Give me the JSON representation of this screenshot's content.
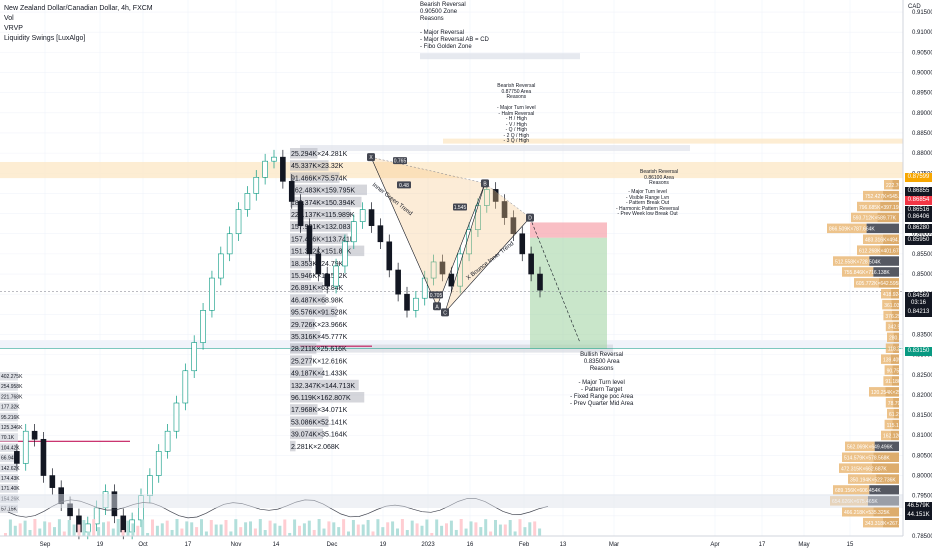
{
  "legend": {
    "title": "New Zealand Dollar/Canadian Dollar, 4h, FXCM",
    "indicators": [
      "Vol",
      "VRVP",
      "Liquidity Swings [LuxAlgo]"
    ]
  },
  "annotations": {
    "top_reversal": [
      "Bearish Reversal",
      "0.90500 Zone",
      "Reasons",
      "",
      "- Major Reversal",
      "- Major Reversal AB = CD",
      "- Fibo Golden Zone"
    ],
    "mid_reversal": [
      "Bearish Reversal",
      "0.87750 Area",
      "Reasons",
      "",
      "- Major Turn level",
      "- Halm Reversal",
      "- H / High",
      "- V / High",
      "- Q / High",
      "- 2 Q / High",
      "- 3 Q / High"
    ],
    "right_reversal": [
      "Bearish Reversal",
      "0.86100 Area",
      "Reasons"
    ],
    "right_reasons": [
      "- Major Turn level",
      "- Visible Range Lvn",
      "- Pattern Break Out",
      "- Harmonic Pattern Reversal",
      "- Prev Week low Break Out"
    ],
    "bullish_reversal": [
      "Bullish Reversal",
      "0.83500 Area",
      "Reasons",
      "",
      "- Major Turn level",
      "- Pattern Target",
      "- Fixed Range poc Area",
      "- Prev Quarter Mid Area"
    ],
    "inner_trend": "Inner Green Trend",
    "bounce_trend": "X Bounce Inner Trend"
  },
  "pattern_points": [
    "X",
    "A",
    "B",
    "C",
    "D",
    "0.765",
    "0.48",
    "1.545",
    "0.705"
  ],
  "vpvr_left_labels": [
    "25.294K×24.281K",
    "45.337K×23.32K",
    "91.466K×75.574K",
    "162.483K×159.795K",
    "180.374K×150.394K",
    "226.137K×115.989K",
    "157.991K×132.083K",
    "157.476K×113.741K",
    "151.322K×151.81K",
    "18.353K×24.79K",
    "15.946K×15.572K",
    "26.891K×63.84K",
    "46.487K×68.98K",
    "95.576K×91.528K",
    "29.726K×23.966K",
    "35.316K×45.777K",
    "28.211K×25.616K",
    "25.277K×12.616K",
    "49.187K×41.433K",
    "132.347K×144.713K",
    "96.119K×162.807K",
    "17.968K×34.071K",
    "53.086K×52.141K",
    "39.074K×35.164K",
    "2.281K×2.068K"
  ],
  "vpvr_right_labels": [
    "222.767K",
    "752.427K×545.367K",
    "796.685K×397.192K",
    "593.712K×589.77K",
    "866.509K×787.664K",
    "483.316K×494.168K",
    "612.268K×401.674K",
    "512.558K×728.504K",
    "755.846K×716.138K",
    "605.772K×642.595K",
    "418.924K×421.923K",
    "361.039K×419.211K",
    "376.297K×345.194K",
    "342.565K",
    "280.172K",
    "118.225K",
    "139.405K×195.62K",
    "90.756K",
    "91.186K",
    "120.254K×254.97K",
    "78.796K",
    "61.235K",
    "115.123K",
    "162.120K",
    "562.069K×649.496K",
    "514.579K×578.568K",
    "472.315K×662.687K",
    "350.194K×522.736K",
    "689.156K×606.454K",
    "654.626K×675.465K",
    "466.218K×535.325K",
    "343.318K×267.515K"
  ],
  "vpvr_far_left": [
    "402.275K",
    "254.958K",
    "221.768K",
    "177.32K",
    "95.216K",
    "125.346K",
    "70.1K",
    "104.42K",
    "66.94K",
    "142.62K",
    "174.43K",
    "171.40K",
    "154.26K",
    "57.15K"
  ],
  "price_axis": {
    "currency": "CAD",
    "ticks": [
      "0.91500",
      "0.91000",
      "0.90500",
      "0.90000",
      "0.89500",
      "0.89000",
      "0.88500",
      "0.88000",
      "0.87500",
      "0.87000",
      "0.86500",
      "0.86000",
      "0.85500",
      "0.85000",
      "0.84500",
      "0.84000",
      "0.83500",
      "0.83000",
      "0.82500",
      "0.82000",
      "0.81500",
      "0.81000",
      "0.80500",
      "0.80000",
      "0.79500",
      "0.79000",
      "0.78500"
    ],
    "badges": [
      {
        "text": "0.87599",
        "color": "#f7a600"
      },
      {
        "text": "0.86855",
        "color": "#131722"
      },
      {
        "text": "0.86854",
        "color": "#f23645"
      },
      {
        "text": "0.86516",
        "color": "#131722"
      },
      {
        "text": "0.86406",
        "color": "#131722"
      },
      {
        "text": "0.86280",
        "color": "#131722"
      },
      {
        "text": "0.85950",
        "color": "#131722"
      },
      {
        "text": "0.84569",
        "color": "#131722"
      },
      {
        "text": "03:16",
        "color": "#131722"
      },
      {
        "text": "0.84213",
        "color": "#131722"
      },
      {
        "text": "0.83150",
        "color": "#089981"
      },
      {
        "text": "46.579K",
        "color": "#131722"
      },
      {
        "text": "44.151K",
        "color": "#131722"
      }
    ]
  },
  "time_axis": {
    "ticks": [
      "Sep",
      "19",
      "Oct",
      "17",
      "Nov",
      "14",
      "Dec",
      "19",
      "2023",
      "16",
      "Feb",
      "13",
      "Mar",
      "Apr",
      "17",
      "May",
      "15"
    ]
  },
  "colors": {
    "up_candle": "#089981",
    "down_candle": "#131722",
    "pattern_fill": "#f7c98d",
    "target_fill": "#a5d6a7",
    "stop_fill": "#f6a3ab",
    "vpvr_dark": "#434651",
    "vpvr_orange": "#e8b46e",
    "level_red": "#c2185b",
    "price_line": "#f23645"
  },
  "chart_data": {
    "type": "candlestick",
    "title": "New Zealand Dollar/Canadian Dollar, 4h, FXCM",
    "xlabel": "",
    "ylabel": "CAD",
    "ylim": [
      0.785,
      0.917
    ],
    "x_ticks": [
      "Sep",
      "19",
      "Oct",
      "17",
      "Nov",
      "14",
      "Dec",
      "19",
      "2023",
      "16",
      "Feb",
      "13",
      "Mar",
      "Apr",
      "17",
      "May",
      "15"
    ],
    "close_path": [
      0.806,
      0.803,
      0.811,
      0.809,
      0.8,
      0.797,
      0.793,
      0.79,
      0.786,
      0.788,
      0.792,
      0.796,
      0.79,
      0.786,
      0.789,
      0.795,
      0.8,
      0.806,
      0.811,
      0.818,
      0.826,
      0.833,
      0.841,
      0.849,
      0.855,
      0.86,
      0.866,
      0.87,
      0.874,
      0.878,
      0.879,
      0.873,
      0.868,
      0.862,
      0.855,
      0.85,
      0.847,
      0.852,
      0.858,
      0.863,
      0.866,
      0.862,
      0.858,
      0.851,
      0.845,
      0.841,
      0.844,
      0.849,
      0.853,
      0.85,
      0.847,
      0.855,
      0.861,
      0.867,
      0.871,
      0.868,
      0.864,
      0.86,
      0.855,
      0.85,
      0.846
    ],
    "last_price": 0.84569,
    "levels": [
      0.87599,
      0.86854,
      0.86516,
      0.86406,
      0.8628,
      0.8595,
      0.84569,
      0.84213,
      0.8315
    ]
  }
}
